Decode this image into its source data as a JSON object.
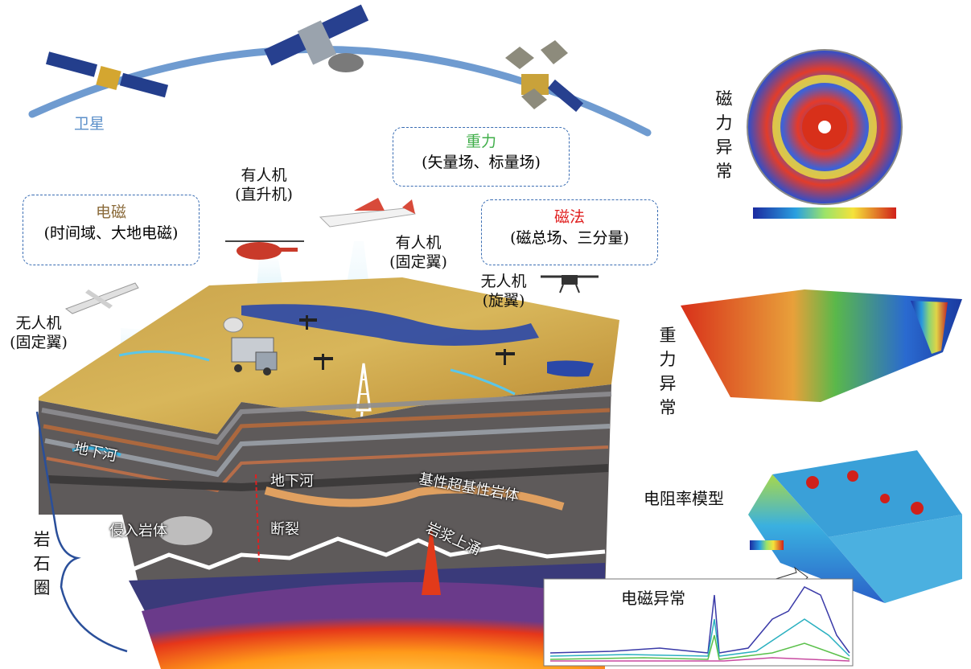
{
  "satellite_label": "卫星",
  "boxes": {
    "em": {
      "title": "电磁",
      "sub": "(时间域、大地电磁)",
      "title_color": "#8a6a3a"
    },
    "gravity": {
      "title": "重力",
      "sub": "(矢量场、标量场)",
      "title_color": "#3fae49"
    },
    "magnetic": {
      "title": "磁法",
      "sub": "(磁总场、三分量)",
      "title_color": "#e02020"
    }
  },
  "aircraft": {
    "heli": {
      "line1": "有人机",
      "line2": "(直升机)"
    },
    "fixed_manned": {
      "line1": "有人机",
      "line2": "(固定翼)"
    },
    "uav_fixed": {
      "line1": "无人机",
      "line2": "(固定翼)"
    },
    "uav_rotor": {
      "line1": "无人机",
      "line2": "(旋翼)"
    }
  },
  "geology": {
    "underground_river_1": "地下河",
    "underground_river_2": "地下河",
    "intrusive": "侵入岩体",
    "fault": "断裂",
    "ultrabasic": "基性超基性岩体",
    "magma": "岩浆上涌",
    "lithosphere": "岩石圈"
  },
  "panels": {
    "magnetic_anomaly": "磁力异常",
    "gravity_anomaly": "重力异常",
    "resistivity_model": "电阻率模型",
    "em_anomaly": "电磁异常"
  },
  "colors": {
    "arc": "#5b8fc9",
    "box_border": "#3a6db3",
    "satellite_label": "#5b8fc9"
  }
}
